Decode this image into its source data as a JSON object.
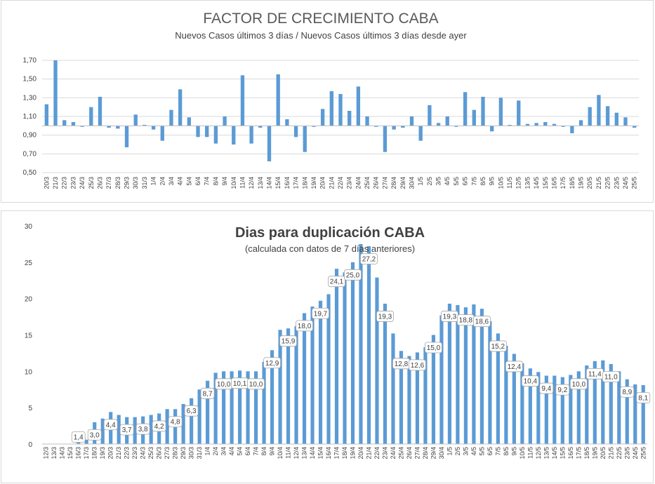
{
  "chart_data": [
    {
      "type": "bar",
      "title": "FACTOR DE CRECIMIENTO CABA",
      "subtitle": "Nuevos Casos últimos 3 días / Nuevos Casos últimos 3 días desde ayer",
      "ylim": [
        0.5,
        1.7
      ],
      "baseline": 1.0,
      "yticks": [
        "0,50",
        "0,70",
        "0,90",
        "1,10",
        "1,30",
        "1,50",
        "1,70"
      ],
      "ytick_values": [
        0.5,
        0.7,
        0.9,
        1.1,
        1.3,
        1.5,
        1.7
      ],
      "grid": true,
      "color": "#5b9bd5",
      "categories": [
        "20/3",
        "21/3",
        "22/3",
        "23/3",
        "24/3",
        "25/3",
        "26/3",
        "27/3",
        "28/3",
        "29/3",
        "30/3",
        "31/3",
        "1/4",
        "2/4",
        "3/4",
        "4/4",
        "5/4",
        "6/4",
        "7/4",
        "8/4",
        "9/4",
        "10/4",
        "11/4",
        "12/4",
        "13/4",
        "14/4",
        "15/4",
        "16/4",
        "17/4",
        "18/4",
        "19/4",
        "20/4",
        "21/4",
        "22/4",
        "23/4",
        "24/4",
        "25/4",
        "26/4",
        "27/4",
        "28/4",
        "29/4",
        "30/4",
        "1/5",
        "2/5",
        "3/5",
        "4/5",
        "5/5",
        "6/5",
        "7/5",
        "8/5",
        "9/5",
        "10/5",
        "11/5",
        "12/5",
        "13/5",
        "14/5",
        "15/5",
        "16/5",
        "17/5",
        "18/5",
        "19/5",
        "20/5",
        "21/5",
        "22/5",
        "23/5",
        "24/5",
        "25/5"
      ],
      "values": [
        1.23,
        1.7,
        1.06,
        1.04,
        1.0,
        1.2,
        1.31,
        0.98,
        0.97,
        0.77,
        1.12,
        1.01,
        0.96,
        0.84,
        1.17,
        1.39,
        1.09,
        0.88,
        0.88,
        0.81,
        1.1,
        0.8,
        1.54,
        0.81,
        0.98,
        0.62,
        1.55,
        1.07,
        0.88,
        0.72,
        1.0,
        1.18,
        1.37,
        1.34,
        1.16,
        1.42,
        1.1,
        0.99,
        0.72,
        0.96,
        0.98,
        1.1,
        0.84,
        1.22,
        1.03,
        1.1,
        0.99,
        1.36,
        1.17,
        1.31,
        0.94,
        1.3,
        1.01,
        1.27,
        1.02,
        1.03,
        1.04,
        1.02,
        1.0,
        0.92,
        1.06,
        1.2,
        1.33,
        1.21,
        1.14,
        1.09,
        0.98
      ],
      "xlabel": "",
      "ylabel": ""
    },
    {
      "type": "bar",
      "title": "Dias para duplicación CABA",
      "subtitle": "(calculada con datos de 7 días anteriores)",
      "ylim": [
        0,
        30
      ],
      "yticks": [
        "0",
        "5",
        "10",
        "15",
        "20",
        "25",
        "30"
      ],
      "ytick_values": [
        0,
        5,
        10,
        15,
        20,
        25,
        30
      ],
      "grid": false,
      "color": "#5b9bd5",
      "categories": [
        "12/3",
        "13/3",
        "14/3",
        "15/3",
        "16/3",
        "17/3",
        "18/3",
        "19/3",
        "20/3",
        "21/3",
        "22/3",
        "23/3",
        "24/3",
        "25/3",
        "26/3",
        "27/3",
        "28/3",
        "29/3",
        "30/3",
        "31/3",
        "1/4",
        "2/4",
        "3/4",
        "4/4",
        "5/4",
        "6/4",
        "7/4",
        "8/4",
        "9/4",
        "10/4",
        "11/4",
        "12/4",
        "13/4",
        "14/4",
        "15/4",
        "16/4",
        "17/4",
        "18/4",
        "19/4",
        "20/4",
        "21/4",
        "22/4",
        "23/4",
        "24/4",
        "25/4",
        "26/4",
        "27/4",
        "28/4",
        "29/4",
        "30/4",
        "1/5",
        "2/5",
        "3/5",
        "4/5",
        "5/5",
        "6/5",
        "7/5",
        "8/5",
        "9/5",
        "10/5",
        "11/5",
        "12/5",
        "13/5",
        "14/5",
        "15/5",
        "16/5",
        "17/5",
        "18/5",
        "19/5",
        "20/5",
        "21/5",
        "22/5",
        "23/5",
        "24/5",
        "25/5"
      ],
      "values": [
        0,
        0,
        0,
        0,
        1.4,
        0.6,
        3.0,
        3.5,
        4.4,
        4.0,
        3.7,
        3.7,
        3.8,
        4.0,
        4.2,
        4.8,
        4.8,
        5.5,
        6.3,
        7.5,
        8.7,
        9.8,
        10.0,
        10.0,
        10.1,
        10.0,
        10.0,
        11.3,
        12.9,
        15.7,
        15.9,
        16.2,
        18.0,
        18.9,
        19.7,
        20.6,
        24.1,
        23.6,
        25.0,
        27.5,
        27.2,
        22.9,
        19.3,
        15.2,
        12.8,
        12.1,
        12.6,
        13.3,
        15.0,
        17.7,
        19.3,
        19.1,
        18.8,
        19.2,
        18.6,
        16.9,
        15.2,
        13.5,
        12.4,
        11.1,
        10.4,
        9.9,
        9.4,
        9.4,
        9.2,
        9.5,
        10.0,
        10.8,
        11.4,
        11.5,
        11.0,
        10.0,
        8.9,
        8.2,
        8.1
      ],
      "labeled_points": [
        {
          "category": "16/3",
          "label": "1,4"
        },
        {
          "category": "18/3",
          "label": "3,0"
        },
        {
          "category": "20/3",
          "label": "4,4"
        },
        {
          "category": "22/3",
          "label": "3,7"
        },
        {
          "category": "24/3",
          "label": "3,8"
        },
        {
          "category": "26/3",
          "label": "4,2"
        },
        {
          "category": "28/3",
          "label": "4,8"
        },
        {
          "category": "30/3",
          "label": "6,3"
        },
        {
          "category": "1/4",
          "label": "8,7"
        },
        {
          "category": "3/4",
          "label": "10,0"
        },
        {
          "category": "5/4",
          "label": "10,1"
        },
        {
          "category": "7/4",
          "label": "10,0"
        },
        {
          "category": "9/4",
          "label": "12,9"
        },
        {
          "category": "11/4",
          "label": "15,9"
        },
        {
          "category": "13/4",
          "label": "18,0"
        },
        {
          "category": "15/4",
          "label": "19,7"
        },
        {
          "category": "17/4",
          "label": "24,1"
        },
        {
          "category": "19/4",
          "label": "25,0"
        },
        {
          "category": "21/4",
          "label": "27,2"
        },
        {
          "category": "23/4",
          "label": "19,3"
        },
        {
          "category": "25/4",
          "label": "12,8"
        },
        {
          "category": "27/4",
          "label": "12,6"
        },
        {
          "category": "29/4",
          "label": "15,0"
        },
        {
          "category": "1/5",
          "label": "19,3"
        },
        {
          "category": "3/5",
          "label": "18,8"
        },
        {
          "category": "5/5",
          "label": "18,6"
        },
        {
          "category": "7/5",
          "label": "15,2"
        },
        {
          "category": "9/5",
          "label": "12,4"
        },
        {
          "category": "11/5",
          "label": "10,4"
        },
        {
          "category": "13/5",
          "label": "9,4"
        },
        {
          "category": "15/5",
          "label": "9,2"
        },
        {
          "category": "17/5",
          "label": "10,0"
        },
        {
          "category": "19/5",
          "label": "11,4"
        },
        {
          "category": "21/5",
          "label": "11,0"
        },
        {
          "category": "23/5",
          "label": "8,9"
        },
        {
          "category": "25/5",
          "label": "8,1"
        }
      ],
      "xlabel": "",
      "ylabel": ""
    }
  ]
}
